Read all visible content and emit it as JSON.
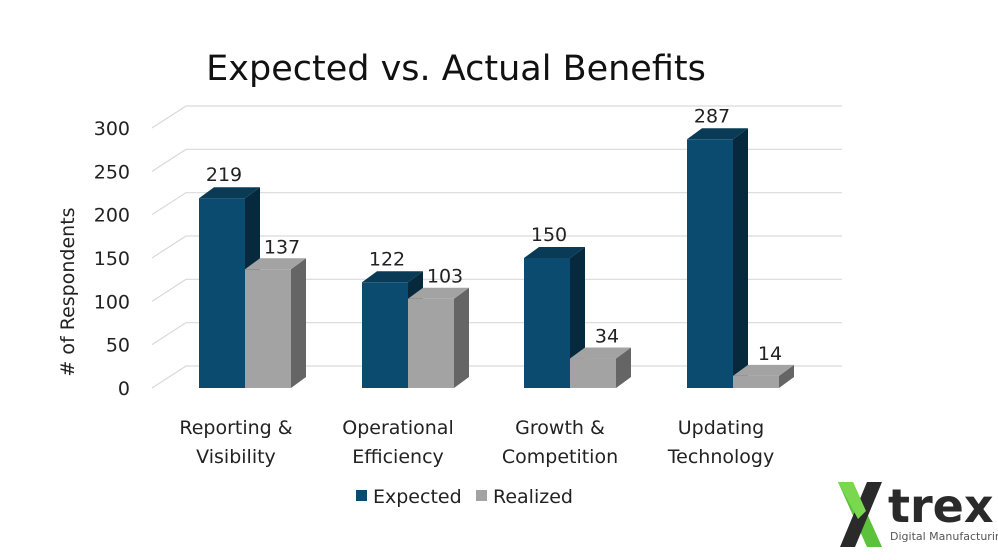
{
  "chart_data": {
    "type": "bar",
    "title": "Expected vs. Actual Benefits",
    "ylabel": "# of Respondents",
    "xlabel": "",
    "ylim": [
      0,
      300
    ],
    "yticks": [
      0,
      50,
      100,
      150,
      200,
      250,
      300
    ],
    "categories": [
      [
        "Reporting &",
        "Visibility"
      ],
      [
        "Operational",
        "Efficiency"
      ],
      [
        "Growth &",
        "Competition"
      ],
      [
        "Updating",
        "Technology"
      ]
    ],
    "series": [
      {
        "name": "Expected",
        "values": [
          219,
          122,
          150,
          287
        ],
        "color": "#0b4b6f"
      },
      {
        "name": "Realized",
        "values": [
          137,
          103,
          34,
          14
        ],
        "color": "#a3a3a3"
      }
    ],
    "legend": "bottom",
    "grid": true,
    "style": "3d-clustered-column"
  },
  "logo": {
    "word": "trex",
    "tagline": "Digital Manufacturing",
    "accent": "#5cc23c"
  }
}
